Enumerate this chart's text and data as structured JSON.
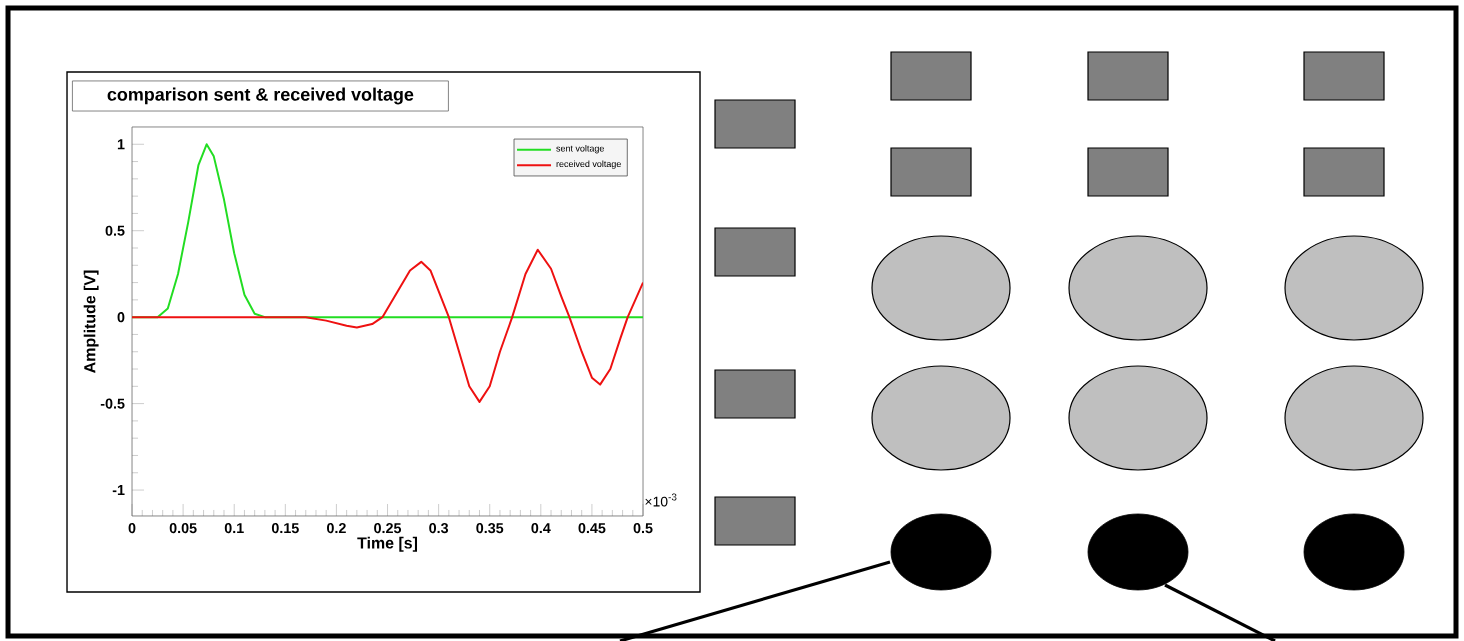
{
  "chart_data": {
    "type": "line",
    "title": "comparison sent & received voltage",
    "xlabel": "Time [s]",
    "ylabel": "Amplitude [V]",
    "annotations": [
      "×10$^{-3}$"
    ],
    "xlim": [
      0,
      0.5
    ],
    "ylim": [
      -1.15,
      1.1
    ],
    "xticks": [
      0,
      0.05,
      0.1,
      0.15,
      0.2,
      0.25,
      0.3,
      0.35,
      0.4,
      0.45,
      0.5
    ],
    "yticks": [
      -1,
      -0.5,
      0,
      0.5,
      1
    ],
    "legend": "top right",
    "marker": "none",
    "line_style": "solid",
    "series": [
      {
        "name": "sent voltage",
        "color": "#22dd22",
        "x": [
          0,
          0.025,
          0.035,
          0.045,
          0.055,
          0.065,
          0.073,
          0.08,
          0.09,
          0.1,
          0.11,
          0.12,
          0.13,
          0.2,
          0.3,
          0.4,
          0.5
        ],
        "values": [
          0,
          0,
          0.05,
          0.25,
          0.55,
          0.88,
          1.0,
          0.93,
          0.68,
          0.37,
          0.13,
          0.02,
          0,
          0,
          0,
          0,
          0
        ]
      },
      {
        "name": "received voltage",
        "color": "#ee1111",
        "x": [
          0,
          0.1,
          0.17,
          0.19,
          0.21,
          0.22,
          0.235,
          0.245,
          0.26,
          0.272,
          0.283,
          0.292,
          0.3,
          0.31,
          0.32,
          0.33,
          0.34,
          0.35,
          0.36,
          0.372,
          0.385,
          0.397,
          0.41,
          0.42,
          0.428,
          0.44,
          0.45,
          0.458,
          0.468,
          0.478,
          0.485,
          0.5
        ],
        "values": [
          0,
          0,
          0,
          -0.02,
          -0.05,
          -0.06,
          -0.04,
          0,
          0.15,
          0.27,
          0.32,
          0.27,
          0.15,
          0,
          -0.2,
          -0.4,
          -0.49,
          -0.4,
          -0.2,
          0,
          0.25,
          0.39,
          0.28,
          0.12,
          0,
          -0.2,
          -0.35,
          -0.39,
          -0.3,
          -0.12,
          0,
          0.2
        ]
      }
    ]
  }
}
